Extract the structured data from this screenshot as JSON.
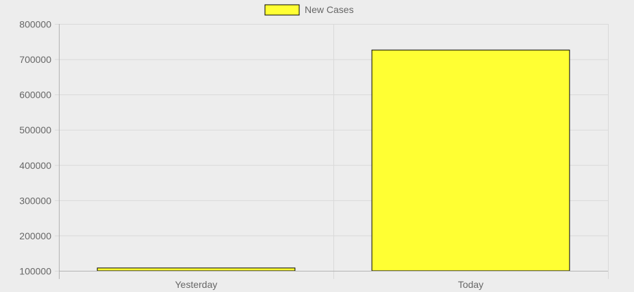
{
  "chart_data": {
    "type": "bar",
    "categories": [
      "Yesterday",
      "Today"
    ],
    "series": [
      {
        "name": "New Cases",
        "values": [
          108000,
          726000
        ],
        "color": "#ffff33",
        "border_color": "#000000"
      }
    ],
    "ylim": [
      100000,
      800000
    ],
    "y_ticks": [
      "800000",
      "700000",
      "600000",
      "500000",
      "400000",
      "300000",
      "200000",
      "100000"
    ],
    "y_tick_values": [
      800000,
      700000,
      600000,
      500000,
      400000,
      300000,
      200000,
      100000
    ],
    "grid": true,
    "legend_position": "top-center",
    "title": "",
    "xlabel": "",
    "ylabel": ""
  },
  "colors": {
    "background": "#ededed",
    "grid": "#d9d9d9",
    "axis": "#b3b3b3",
    "text": "#666666"
  }
}
